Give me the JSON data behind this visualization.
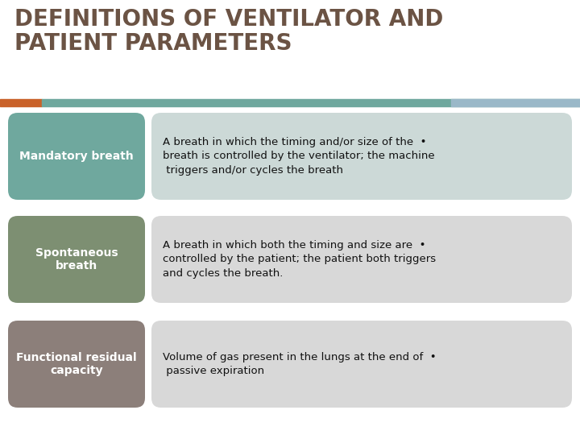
{
  "title_line1": "DEFINITIONS OF VENTILATOR AND",
  "title_line2": "PATIENT PARAMETERS",
  "title_color": "#6b5344",
  "title_fontsize": 20,
  "bg_color": "#ffffff",
  "rows": [
    {
      "label": "Mandatory breath",
      "label_bg": "#6fa89e",
      "label_text_color": "#ffffff",
      "desc_bg": "#ccd9d7",
      "description": "A breath in which the timing and/or size of the  •\nbreath is controlled by the ventilator; the machine\n triggers and/or cycles the breath"
    },
    {
      "label": "Spontaneous\nbreath",
      "label_bg": "#7d8f72",
      "label_text_color": "#ffffff",
      "desc_bg": "#d8d8d8",
      "description": "A breath in which both the timing and size are  •\ncontrolled by the patient; the patient both triggers\nand cycles the breath."
    },
    {
      "label": "Functional residual\ncapacity",
      "label_bg": "#8c7f7a",
      "label_text_color": "#ffffff",
      "desc_bg": "#d8d8d8",
      "description": "Volume of gas present in the lungs at the end of  •\n passive expiration"
    }
  ],
  "accent_orange": "#c9622a",
  "accent_blue": "#9ab8c8",
  "accent_teal": "#6fa89e"
}
